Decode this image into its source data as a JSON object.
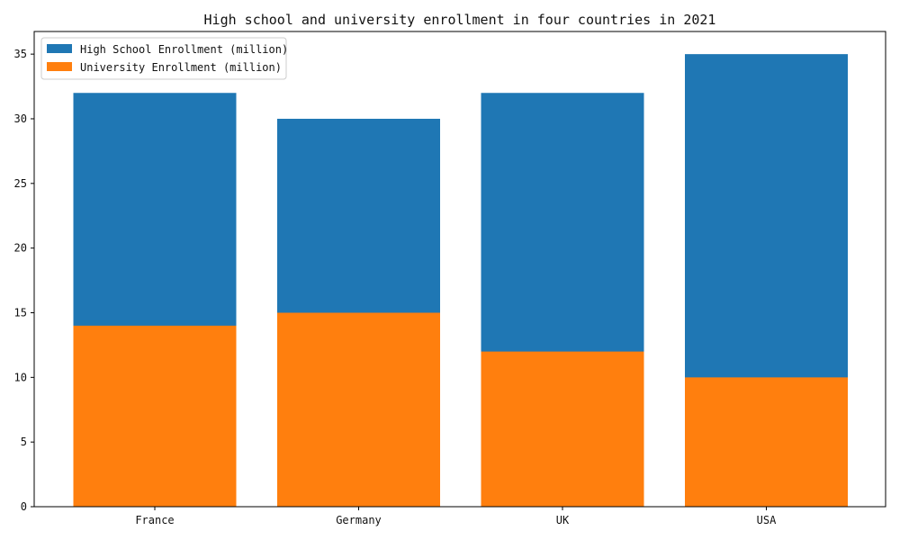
{
  "chart_data": {
    "type": "bar",
    "stacked": false,
    "title": "High school and university enrollment in four countries in 2021",
    "categories": [
      "France",
      "Germany",
      "UK",
      "USA"
    ],
    "series": [
      {
        "name": "High School Enrollment (million)",
        "values": [
          32,
          30,
          32,
          35
        ],
        "color": "#1f77b4"
      },
      {
        "name": "University Enrollment (million)",
        "values": [
          14,
          15,
          12,
          10
        ],
        "color": "#ff7f0e"
      }
    ],
    "xlabel": "",
    "ylabel": "",
    "ylim": [
      0,
      36.75
    ],
    "yticks": [
      0,
      5,
      10,
      15,
      20,
      25,
      30,
      35
    ],
    "grid": false,
    "legend": "top-left"
  }
}
